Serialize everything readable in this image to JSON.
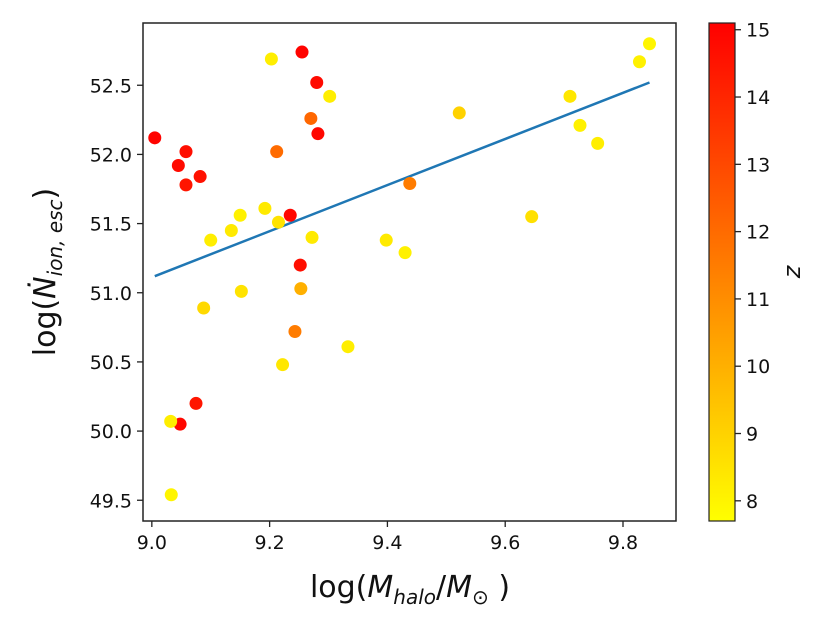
{
  "chart_data": {
    "type": "scatter",
    "title": "",
    "xlabel": "log(M_halo/M_⊙)",
    "ylabel": "log(Ṅ_ion,esc)",
    "xlim": [
      8.985,
      9.89
    ],
    "ylim": [
      49.35,
      52.95
    ],
    "xticks": [
      9.0,
      9.2,
      9.4,
      9.6,
      9.8
    ],
    "xtick_labels": [
      "9.0",
      "9.2",
      "9.4",
      "9.6",
      "9.8"
    ],
    "yticks": [
      49.5,
      50.0,
      50.5,
      51.0,
      51.5,
      52.0,
      52.5
    ],
    "ytick_labels": [
      "49.5",
      "50.0",
      "50.5",
      "51.0",
      "51.5",
      "52.0",
      "52.5"
    ],
    "colorbar": {
      "label": "z",
      "range": [
        7.7,
        15.1
      ],
      "ticks": [
        8,
        9,
        10,
        11,
        12,
        13,
        14,
        15
      ],
      "tick_labels": [
        "8",
        "9",
        "10",
        "11",
        "12",
        "13",
        "14",
        "15"
      ],
      "cmap": "autumn_r",
      "low_color": "#ffff00",
      "high_color": "#ff0000"
    },
    "fit_line": {
      "x": [
        9.005,
        9.845
      ],
      "y": [
        51.12,
        52.52
      ],
      "color": "#1f77b4"
    },
    "points": [
      {
        "x": 9.005,
        "y": 52.12,
        "z": 15.0
      },
      {
        "x": 9.045,
        "y": 51.92,
        "z": 14.8
      },
      {
        "x": 9.058,
        "y": 52.02,
        "z": 14.7
      },
      {
        "x": 9.058,
        "y": 51.78,
        "z": 14.5
      },
      {
        "x": 9.082,
        "y": 51.84,
        "z": 14.6
      },
      {
        "x": 9.048,
        "y": 50.05,
        "z": 14.9
      },
      {
        "x": 9.075,
        "y": 50.2,
        "z": 14.5
      },
      {
        "x": 9.032,
        "y": 50.07,
        "z": 8.2
      },
      {
        "x": 9.033,
        "y": 49.54,
        "z": 8.0
      },
      {
        "x": 9.088,
        "y": 50.89,
        "z": 8.8
      },
      {
        "x": 9.1,
        "y": 51.38,
        "z": 8.2
      },
      {
        "x": 9.135,
        "y": 51.45,
        "z": 8.3
      },
      {
        "x": 9.15,
        "y": 51.56,
        "z": 8.1
      },
      {
        "x": 9.152,
        "y": 51.01,
        "z": 8.5
      },
      {
        "x": 9.192,
        "y": 51.61,
        "z": 8.3
      },
      {
        "x": 9.203,
        "y": 52.69,
        "z": 8.2
      },
      {
        "x": 9.212,
        "y": 52.02,
        "z": 12.0
      },
      {
        "x": 9.215,
        "y": 51.51,
        "z": 8.5
      },
      {
        "x": 9.222,
        "y": 50.48,
        "z": 8.4
      },
      {
        "x": 9.235,
        "y": 51.56,
        "z": 14.9
      },
      {
        "x": 9.243,
        "y": 50.72,
        "z": 11.5
      },
      {
        "x": 9.252,
        "y": 51.2,
        "z": 14.7
      },
      {
        "x": 9.253,
        "y": 51.03,
        "z": 10.0
      },
      {
        "x": 9.255,
        "y": 52.74,
        "z": 15.0
      },
      {
        "x": 9.27,
        "y": 52.26,
        "z": 12.1
      },
      {
        "x": 9.272,
        "y": 51.4,
        "z": 8.3
      },
      {
        "x": 9.28,
        "y": 52.52,
        "z": 14.8
      },
      {
        "x": 9.282,
        "y": 52.15,
        "z": 14.9
      },
      {
        "x": 9.302,
        "y": 52.42,
        "z": 8.2
      },
      {
        "x": 9.333,
        "y": 50.61,
        "z": 8.2
      },
      {
        "x": 9.398,
        "y": 51.38,
        "z": 8.3
      },
      {
        "x": 9.43,
        "y": 51.29,
        "z": 8.1
      },
      {
        "x": 9.438,
        "y": 51.79,
        "z": 11.5
      },
      {
        "x": 9.522,
        "y": 52.3,
        "z": 9.0
      },
      {
        "x": 9.645,
        "y": 51.55,
        "z": 8.6
      },
      {
        "x": 9.71,
        "y": 52.42,
        "z": 8.4
      },
      {
        "x": 9.727,
        "y": 52.21,
        "z": 8.1
      },
      {
        "x": 9.757,
        "y": 52.08,
        "z": 8.2
      },
      {
        "x": 9.828,
        "y": 52.67,
        "z": 8.1
      },
      {
        "x": 9.845,
        "y": 52.8,
        "z": 8.0
      }
    ]
  }
}
